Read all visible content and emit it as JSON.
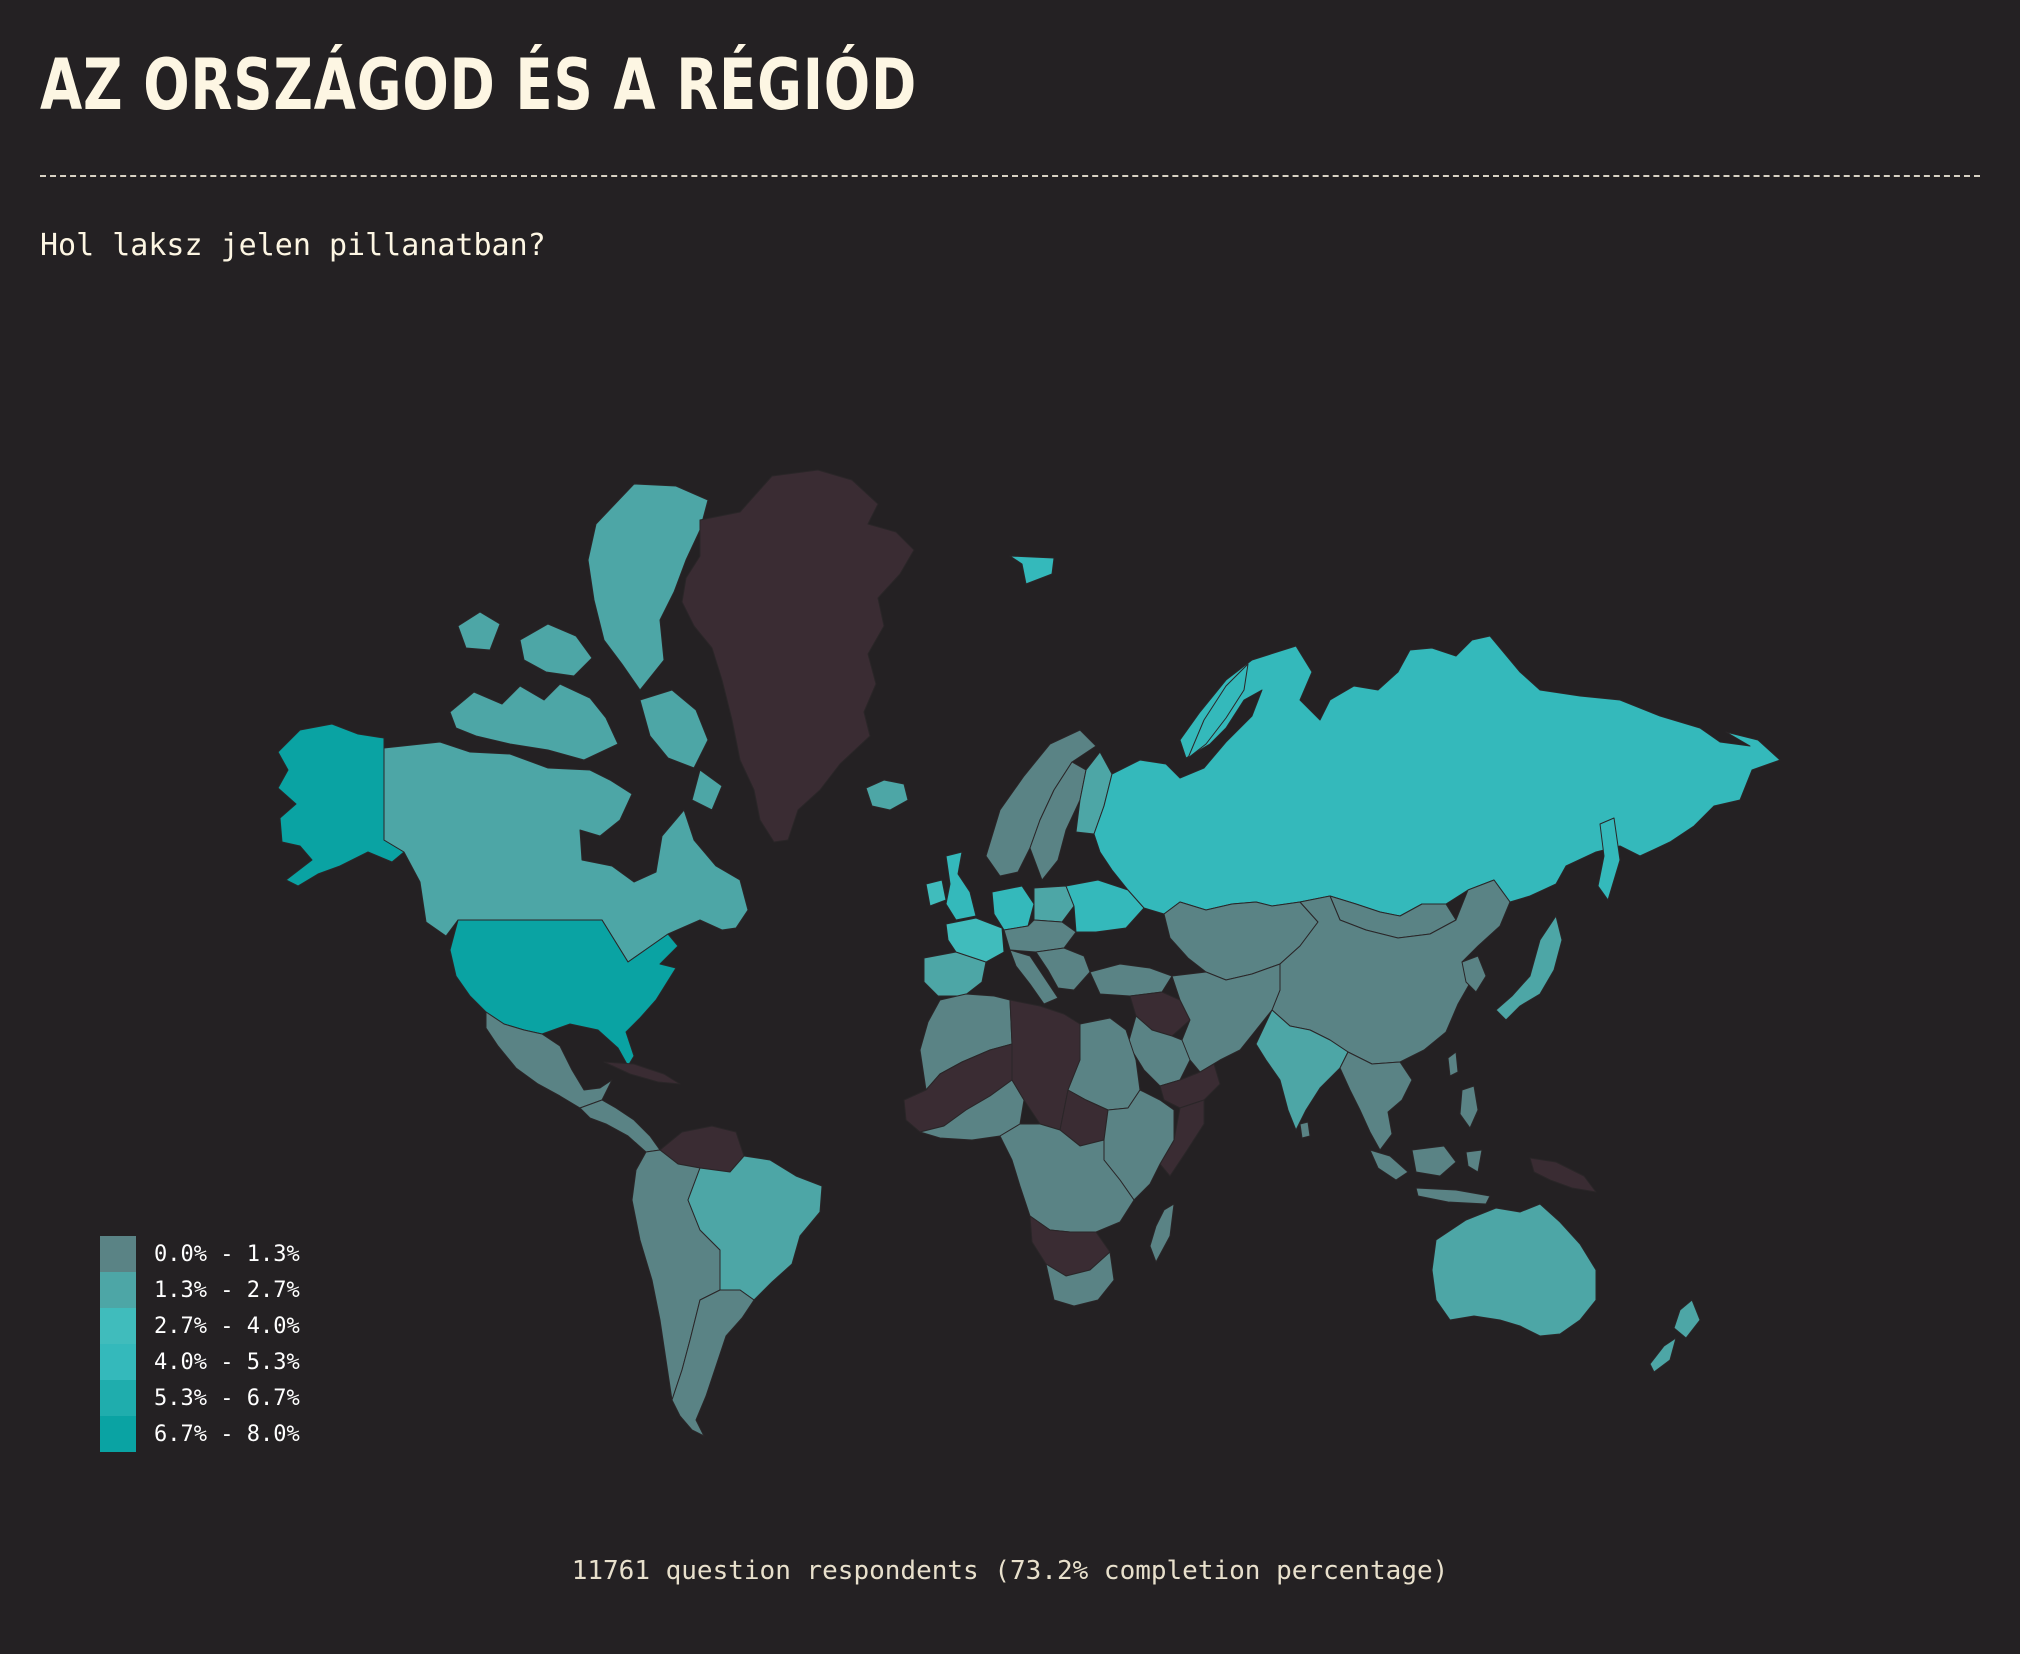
{
  "header": {
    "title": "AZ ORSZÁGOD ÉS A RÉGIÓD",
    "question": "Hol laksz jelen pillanatban?"
  },
  "footer": {
    "text": "11761 question respondents (73.2% completion percentage)"
  },
  "colors": {
    "background": "#242123",
    "no_data": "#3a2c33",
    "accent": "#0aa3a3"
  },
  "legend": [
    {
      "label": "0.0% - 1.3%",
      "color": "#5a8385"
    },
    {
      "label": "1.3% - 2.7%",
      "color": "#4da6a6"
    },
    {
      "label": "2.7% - 4.0%",
      "color": "#40bcbc"
    },
    {
      "label": "4.0% - 5.3%",
      "color": "#34b9bb"
    },
    {
      "label": "5.3% - 6.7%",
      "color": "#1fadad"
    },
    {
      "label": "6.7% - 8.0%",
      "color": "#0aa3a3"
    }
  ],
  "regions": [
    {
      "name": "canada",
      "bin": 1
    },
    {
      "name": "alaska",
      "bin": 5
    },
    {
      "name": "usa",
      "bin": 5
    },
    {
      "name": "greenland",
      "bin": -1
    },
    {
      "name": "mexico",
      "bin": 0
    },
    {
      "name": "central-america",
      "bin": 0
    },
    {
      "name": "cuba",
      "bin": -1
    },
    {
      "name": "venezuela",
      "bin": -1
    },
    {
      "name": "south-america-west",
      "bin": 0
    },
    {
      "name": "brazil",
      "bin": 1
    },
    {
      "name": "argentina",
      "bin": 0
    },
    {
      "name": "iceland",
      "bin": 1
    },
    {
      "name": "uk",
      "bin": 3
    },
    {
      "name": "ireland",
      "bin": 2
    },
    {
      "name": "norway",
      "bin": 0
    },
    {
      "name": "sweden",
      "bin": 0
    },
    {
      "name": "finland",
      "bin": 1
    },
    {
      "name": "iberia",
      "bin": 1
    },
    {
      "name": "france",
      "bin": 2
    },
    {
      "name": "germany",
      "bin": 3
    },
    {
      "name": "poland",
      "bin": 1
    },
    {
      "name": "central-europe",
      "bin": 0
    },
    {
      "name": "italy",
      "bin": 0
    },
    {
      "name": "balkans",
      "bin": 0
    },
    {
      "name": "ukraine",
      "bin": 3
    },
    {
      "name": "russia",
      "bin": 3
    },
    {
      "name": "kazakhstan-central-asia",
      "bin": 0
    },
    {
      "name": "mongolia",
      "bin": 0
    },
    {
      "name": "china",
      "bin": 0
    },
    {
      "name": "turkey",
      "bin": 0
    },
    {
      "name": "middle-east",
      "bin": 0
    },
    {
      "name": "syria-iraq",
      "bin": -1
    },
    {
      "name": "yemen-oman",
      "bin": -1
    },
    {
      "name": "india",
      "bin": 1
    },
    {
      "name": "southeast-asia",
      "bin": 0
    },
    {
      "name": "japan",
      "bin": 1
    },
    {
      "name": "korea",
      "bin": 0
    },
    {
      "name": "indonesia",
      "bin": 0
    },
    {
      "name": "philippines",
      "bin": 0
    },
    {
      "name": "papua-new-guinea",
      "bin": -1
    },
    {
      "name": "north-africa-west",
      "bin": 0
    },
    {
      "name": "west-africa",
      "bin": -1
    },
    {
      "name": "west-africa-coast",
      "bin": 0
    },
    {
      "name": "libya",
      "bin": -1
    },
    {
      "name": "egypt-sudan",
      "bin": 0
    },
    {
      "name": "central-africa",
      "bin": -1
    },
    {
      "name": "east-africa",
      "bin": 0
    },
    {
      "name": "somalia",
      "bin": -1
    },
    {
      "name": "congo-angola",
      "bin": 0
    },
    {
      "name": "southern-africa-dark",
      "bin": -1
    },
    {
      "name": "south-africa",
      "bin": 0
    },
    {
      "name": "madagascar",
      "bin": 0
    },
    {
      "name": "australia",
      "bin": 1
    },
    {
      "name": "new-zealand",
      "bin": 1
    },
    {
      "name": "svalbard",
      "bin": 3
    },
    {
      "name": "novaya-zemlya",
      "bin": 3
    },
    {
      "name": "arctic-islands",
      "bin": 1
    },
    {
      "name": "sakhalin",
      "bin": 3
    },
    {
      "name": "sri-lanka",
      "bin": 0
    },
    {
      "name": "taiwan",
      "bin": 0
    }
  ]
}
